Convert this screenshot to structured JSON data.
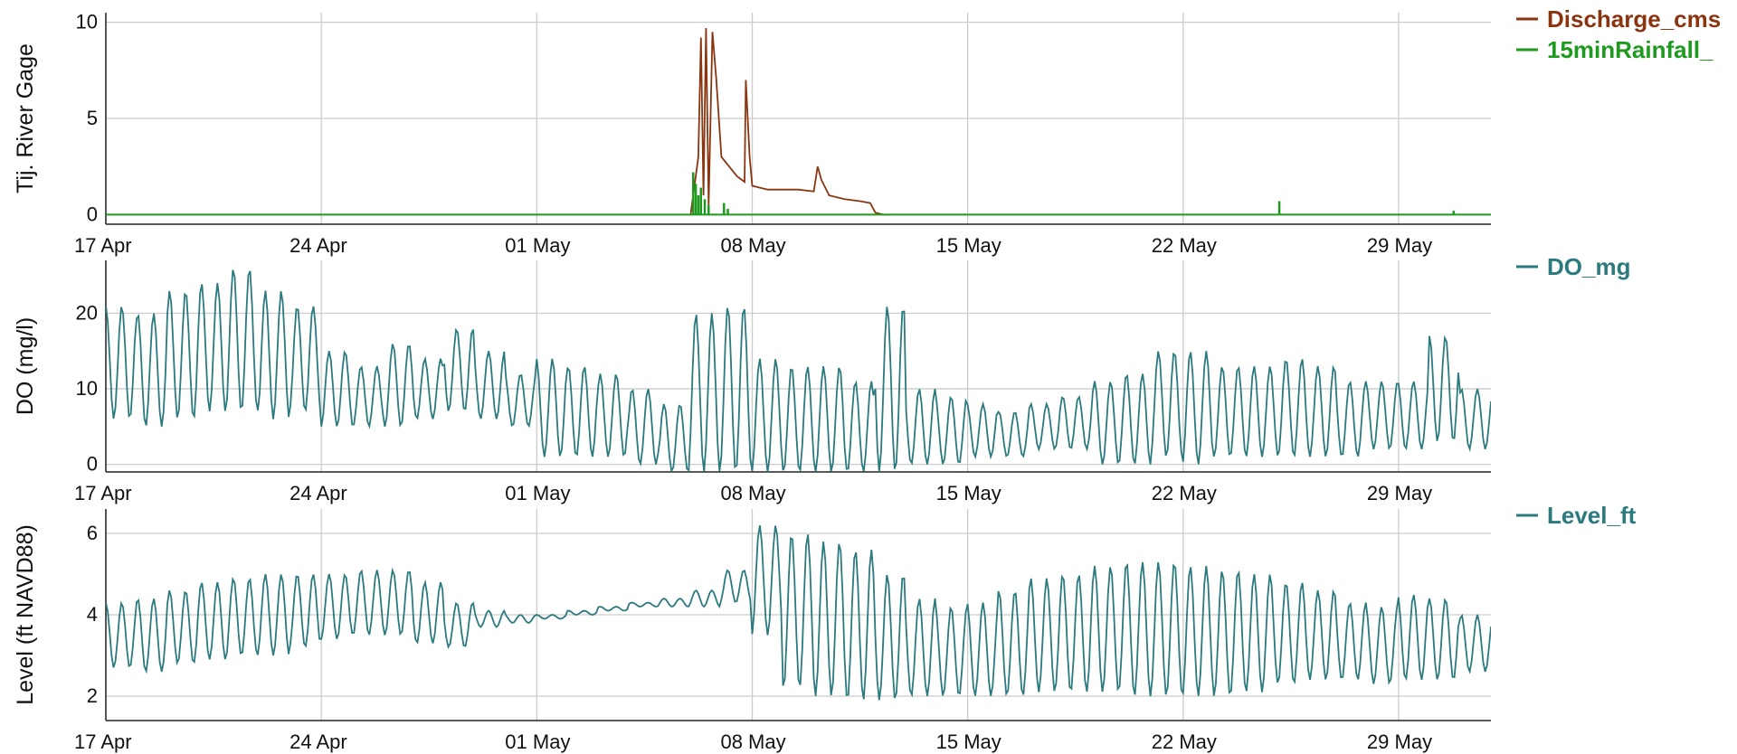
{
  "colors": {
    "discharge": "#8B3510",
    "rainfall": "#1E9A1E",
    "teal": "#2A7A7E",
    "grid": "#cccccc",
    "axis": "#222222"
  },
  "x_ticks": [
    "17 Apr",
    "24 Apr",
    "01 May",
    "08 May",
    "15 May",
    "22 May",
    "29 May"
  ],
  "chart_data": [
    {
      "type": "line",
      "ylabel": "Tij. River Gage",
      "ylim": [
        -0.5,
        10.5
      ],
      "y_ticks": [
        "0",
        "5",
        "10"
      ],
      "xlim": [
        "2014-04-17",
        "2014-06-01"
      ],
      "x_tick_labels": [
        "17 Apr",
        "24 Apr",
        "01 May",
        "08 May",
        "15 May",
        "22 May",
        "29 May"
      ],
      "legend": "top-right (outside)",
      "series": [
        {
          "name": "Discharge_cms",
          "color": "#8B3510",
          "points": [
            [
              "2014-05-06T00:00",
              0
            ],
            [
              "2014-05-06T06:00",
              3
            ],
            [
              "2014-05-06T08:00",
              9.2
            ],
            [
              "2014-05-06T10:00",
              1
            ],
            [
              "2014-05-06T12:00",
              9.7
            ],
            [
              "2014-05-06T14:00",
              0.5
            ],
            [
              "2014-05-06T17:00",
              9.5
            ],
            [
              "2014-05-06T20:00",
              7
            ],
            [
              "2014-05-07T00:00",
              3
            ],
            [
              "2014-05-07T06:00",
              2.5
            ],
            [
              "2014-05-07T12:00",
              2
            ],
            [
              "2014-05-07T18:00",
              1.7
            ],
            [
              "2014-05-07T19:00",
              7
            ],
            [
              "2014-05-07T22:00",
              3
            ],
            [
              "2014-05-08T00:00",
              1.5
            ],
            [
              "2014-05-08T12:00",
              1.3
            ],
            [
              "2014-05-09T00:00",
              1.3
            ],
            [
              "2014-05-09T12:00",
              1.3
            ],
            [
              "2014-05-10T00:00",
              1.2
            ],
            [
              "2014-05-10T03:00",
              2.5
            ],
            [
              "2014-05-10T06:00",
              1.8
            ],
            [
              "2014-05-10T12:00",
              1
            ],
            [
              "2014-05-11T00:00",
              0.8
            ],
            [
              "2014-05-11T12:00",
              0.7
            ],
            [
              "2014-05-11T20:00",
              0.6
            ],
            [
              "2014-05-12T00:00",
              0.1
            ],
            [
              "2014-05-12T06:00",
              0
            ],
            [
              "2014-05-12T12:00",
              0
            ]
          ]
        },
        {
          "name": "15minRainfall_",
          "color": "#1E9A1E",
          "baseline": 0,
          "spikes": [
            [
              "2014-05-06T02:00",
              2.2
            ],
            [
              "2014-05-06T04:00",
              1.6
            ],
            [
              "2014-05-06T06:00",
              1.0
            ],
            [
              "2014-05-06T08:00",
              1.4
            ],
            [
              "2014-05-06T11:00",
              0.8
            ],
            [
              "2014-05-06T14:00",
              0.5
            ],
            [
              "2014-05-07T02:00",
              0.6
            ],
            [
              "2014-05-07T05:00",
              0.3
            ],
            [
              "2014-05-25T03:00",
              0.7
            ],
            [
              "2014-05-30T19:00",
              0.2
            ]
          ]
        }
      ]
    },
    {
      "type": "line",
      "ylabel": "DO (mg/l)",
      "ylim": [
        -1,
        27
      ],
      "y_ticks": [
        "0",
        "10",
        "20"
      ],
      "xlim": [
        "2014-04-17",
        "2014-06-01"
      ],
      "x_tick_labels": [
        "17 Apr",
        "24 Apr",
        "01 May",
        "08 May",
        "15 May",
        "22 May",
        "29 May"
      ],
      "legend": "top-right (outside)",
      "series": [
        {
          "name": "DO_mg",
          "color": "#2A7A7E",
          "daily_minmax": [
            [
              6,
              21
            ],
            [
              5,
              20
            ],
            [
              6,
              23
            ],
            [
              7,
              24
            ],
            [
              7,
              26
            ],
            [
              6,
              23
            ],
            [
              7,
              21
            ],
            [
              5,
              15
            ],
            [
              5,
              13
            ],
            [
              5,
              16
            ],
            [
              6,
              14
            ],
            [
              7,
              18
            ],
            [
              6,
              15
            ],
            [
              5,
              12
            ],
            [
              1,
              14
            ],
            [
              1,
              13
            ],
            [
              1,
              12
            ],
            [
              0,
              10
            ],
            [
              -1,
              8
            ],
            [
              -1,
              20
            ],
            [
              -1,
              21
            ],
            [
              -1,
              14
            ],
            [
              -1,
              13
            ],
            [
              -1,
              13
            ],
            [
              -1,
              11
            ],
            [
              -1,
              21
            ],
            [
              0,
              10
            ],
            [
              0,
              9
            ],
            [
              1,
              8
            ],
            [
              1,
              7
            ],
            [
              2,
              8
            ],
            [
              2,
              9
            ],
            [
              0,
              11
            ],
            [
              0,
              12
            ],
            [
              1,
              15
            ],
            [
              0,
              15
            ],
            [
              1,
              13
            ],
            [
              1,
              13
            ],
            [
              1,
              14
            ],
            [
              1,
              13
            ],
            [
              1,
              11
            ],
            [
              2,
              11
            ],
            [
              2,
              11
            ],
            [
              3,
              17
            ],
            [
              2,
              10
            ]
          ]
        }
      ]
    },
    {
      "type": "line",
      "ylabel": "Level (ft NAVD88)",
      "ylim": [
        1.4,
        6.6
      ],
      "y_ticks": [
        "2",
        "4",
        "6"
      ],
      "xlim": [
        "2014-04-17",
        "2014-06-01"
      ],
      "x_tick_labels": [
        "17 Apr",
        "24 Apr",
        "01 May",
        "08 May",
        "15 May",
        "22 May",
        "29 May"
      ],
      "legend": "top-right (outside)",
      "series": [
        {
          "name": "Level_ft",
          "color": "#2A7A7E",
          "daily_minmax": [
            [
              2.7,
              4.3
            ],
            [
              2.6,
              4.4
            ],
            [
              2.8,
              4.6
            ],
            [
              2.9,
              4.8
            ],
            [
              3.0,
              4.9
            ],
            [
              3.0,
              5.0
            ],
            [
              3.2,
              5.0
            ],
            [
              3.4,
              5.0
            ],
            [
              3.5,
              5.1
            ],
            [
              3.5,
              5.1
            ],
            [
              3.3,
              4.8
            ],
            [
              3.2,
              4.3
            ],
            [
              3.7,
              4.1
            ],
            [
              3.8,
              4.0
            ],
            [
              3.9,
              4.0
            ],
            [
              4.0,
              4.1
            ],
            [
              4.1,
              4.2
            ],
            [
              4.2,
              4.3
            ],
            [
              4.2,
              4.4
            ],
            [
              4.2,
              4.6
            ],
            [
              4.3,
              5.1
            ],
            [
              3.5,
              6.2
            ],
            [
              2.2,
              6.0
            ],
            [
              2.0,
              5.8
            ],
            [
              1.9,
              5.6
            ],
            [
              1.9,
              5.0
            ],
            [
              2.0,
              4.4
            ],
            [
              2.0,
              4.2
            ],
            [
              2.0,
              4.3
            ],
            [
              2.0,
              4.6
            ],
            [
              2.1,
              4.9
            ],
            [
              2.1,
              5.0
            ],
            [
              2.1,
              5.2
            ],
            [
              2.0,
              5.3
            ],
            [
              2.0,
              5.3
            ],
            [
              2.0,
              5.2
            ],
            [
              2.0,
              5.1
            ],
            [
              2.1,
              5.0
            ],
            [
              2.3,
              4.8
            ],
            [
              2.4,
              4.6
            ],
            [
              2.4,
              4.3
            ],
            [
              2.3,
              4.2
            ],
            [
              2.4,
              4.5
            ],
            [
              2.4,
              4.4
            ],
            [
              2.6,
              4.0
            ]
          ]
        }
      ]
    }
  ]
}
